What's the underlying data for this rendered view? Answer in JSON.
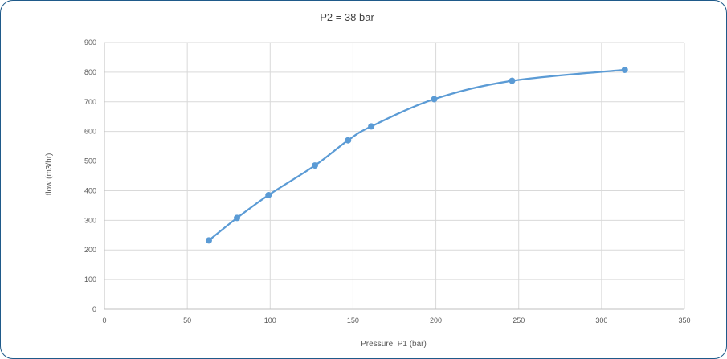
{
  "chart_data": {
    "type": "line",
    "title": "P2 = 38 bar",
    "xlabel": "Pressure, P1 (bar)",
    "ylabel": "flow (m3/hr)",
    "xlim": [
      0,
      350
    ],
    "ylim": [
      0,
      900
    ],
    "xticks": [
      0,
      50,
      100,
      150,
      200,
      250,
      300,
      350
    ],
    "yticks": [
      0,
      100,
      200,
      300,
      400,
      500,
      600,
      700,
      800,
      900
    ],
    "grid": true,
    "legend": "none",
    "smooth": true,
    "series": [
      {
        "color": "#5b9bd5",
        "points": [
          {
            "x": 63,
            "y": 232
          },
          {
            "x": 80,
            "y": 308
          },
          {
            "x": 99,
            "y": 385
          },
          {
            "x": 127,
            "y": 485
          },
          {
            "x": 147,
            "y": 570
          },
          {
            "x": 161,
            "y": 617
          },
          {
            "x": 199,
            "y": 709
          },
          {
            "x": 246,
            "y": 771
          },
          {
            "x": 314,
            "y": 808
          }
        ]
      }
    ]
  },
  "colors": {
    "frame_border": "#1f5a8a",
    "grid": "#d9d9d9",
    "axis": "#bfbfbf",
    "text": "#595959"
  }
}
